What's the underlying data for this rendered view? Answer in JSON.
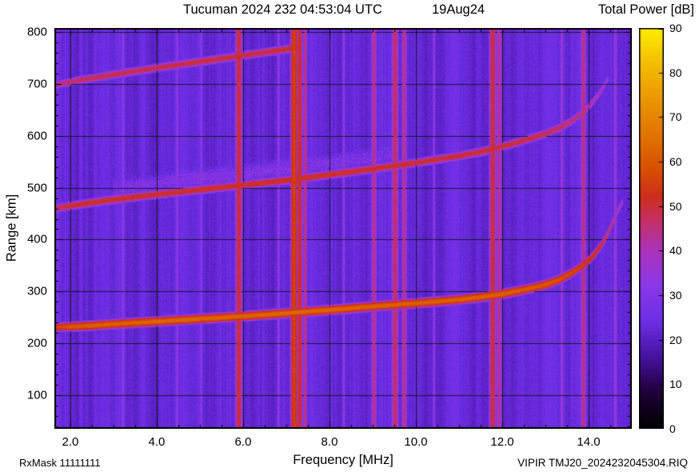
{
  "header": {
    "title": "Tucuman 2024 232 04:53:04 UTC",
    "date": "19Aug24",
    "colorbar_title": "Total Power [dB]"
  },
  "footer": {
    "rxmask": "RxMask 11111111",
    "file": "VIPIR  TMJ20_2024232045304.RIQ"
  },
  "chart_data": {
    "type": "heatmap",
    "title": "Tucuman 2024 232 04:53:04 UTC   19Aug24",
    "xlabel": "Frequency [MHz]",
    "ylabel": "Range [km]",
    "colorbar_label": "Total Power [dB]",
    "x_range": [
      1.63,
      15.0
    ],
    "y_range": [
      35,
      808
    ],
    "x_ticks": {
      "values": [
        2,
        4,
        6,
        8,
        10,
        12,
        14
      ],
      "labels": [
        "2.0",
        "4.0",
        "6.0",
        "8.0",
        "10.0",
        "12.0",
        "14.0"
      ],
      "minor_step": 0.5
    },
    "y_ticks": {
      "values": [
        100,
        200,
        300,
        400,
        500,
        600,
        700,
        800
      ],
      "labels": [
        "100",
        "200",
        "300",
        "400",
        "500",
        "600",
        "700",
        "800"
      ],
      "minor_step": 20
    },
    "colorbar": {
      "range": [
        0,
        90
      ],
      "tick_values": [
        0,
        10,
        20,
        30,
        40,
        50,
        60,
        70,
        80,
        90
      ],
      "tick_labels": [
        "0",
        "10",
        "20",
        "30",
        "40",
        "50",
        "60",
        "70",
        "80",
        "90"
      ],
      "stops": [
        [
          0,
          "#000000"
        ],
        [
          8,
          "#1e0038"
        ],
        [
          16,
          "#45129e"
        ],
        [
          24,
          "#6d2ee4"
        ],
        [
          32,
          "#8a38e8"
        ],
        [
          40,
          "#ab33bb"
        ],
        [
          47,
          "#c52f62"
        ],
        [
          52,
          "#cd2d1e"
        ],
        [
          58,
          "#d64e00"
        ],
        [
          66,
          "#e17400"
        ],
        [
          74,
          "#ea9700"
        ],
        [
          82,
          "#f3bd00"
        ],
        [
          90,
          "#ffef00"
        ]
      ]
    },
    "background_db": 23,
    "column_noise_db": 1.8,
    "pixel_noise_db": 3,
    "grid_color": "#001400",
    "rfi_lines": [
      {
        "f": 3.22,
        "db": 33,
        "w": 1.5
      },
      {
        "f": 4.47,
        "db": 33,
        "w": 1.5
      },
      {
        "f": 5.03,
        "db": 32,
        "w": 1.5
      },
      {
        "f": 5.9,
        "db": 50,
        "w": 2.5
      },
      {
        "f": 6.82,
        "db": 34,
        "w": 1.5
      },
      {
        "f": 7.18,
        "db": 56,
        "w": 2.5
      },
      {
        "f": 7.31,
        "db": 52,
        "w": 2.0
      },
      {
        "f": 7.44,
        "db": 45,
        "w": 1.5
      },
      {
        "f": 8.33,
        "db": 33,
        "w": 1.5
      },
      {
        "f": 9.03,
        "db": 44,
        "w": 2.0
      },
      {
        "f": 9.52,
        "db": 47,
        "w": 2.5
      },
      {
        "f": 9.73,
        "db": 44,
        "w": 2.0
      },
      {
        "f": 10.42,
        "db": 33,
        "w": 1.5
      },
      {
        "f": 11.78,
        "db": 50,
        "w": 2.5
      },
      {
        "f": 11.93,
        "db": 44,
        "w": 2.0
      },
      {
        "f": 13.38,
        "db": 36,
        "w": 1.5
      },
      {
        "f": 13.88,
        "db": 45,
        "w": 2.0
      },
      {
        "f": 14.62,
        "db": 36,
        "w": 1.5
      }
    ],
    "traces": [
      {
        "name": "F-region echo 1st hop",
        "sigma_km": 5,
        "jitter_db": 2,
        "points": [
          [
            1.65,
            231,
            56
          ],
          [
            2.0,
            232,
            60
          ],
          [
            2.5,
            234,
            62
          ],
          [
            3.0,
            237,
            62
          ],
          [
            4.0,
            242,
            63
          ],
          [
            5.0,
            247,
            63
          ],
          [
            6.0,
            252,
            63
          ],
          [
            7.0,
            258,
            63
          ],
          [
            8.0,
            264,
            63
          ],
          [
            9.0,
            271,
            62
          ],
          [
            10.0,
            277,
            62
          ],
          [
            11.0,
            284,
            62
          ],
          [
            11.5,
            289,
            62
          ],
          [
            12.0,
            295,
            62
          ],
          [
            12.5,
            303,
            61
          ],
          [
            13.0,
            313,
            60
          ],
          [
            13.3,
            322,
            59
          ],
          [
            13.6,
            335,
            57
          ],
          [
            13.9,
            352,
            55
          ],
          [
            14.1,
            368,
            53
          ],
          [
            14.3,
            390,
            50
          ],
          [
            14.45,
            412,
            46
          ],
          [
            14.55,
            432,
            43
          ],
          [
            14.65,
            452,
            40
          ],
          [
            14.78,
            472,
            37
          ]
        ]
      },
      {
        "name": "F-region echo 2nd hop",
        "sigma_km": 5,
        "jitter_db": 3,
        "points": [
          [
            1.65,
            460,
            48
          ],
          [
            2.0,
            465,
            51
          ],
          [
            2.5,
            471,
            52
          ],
          [
            3.0,
            477,
            52
          ],
          [
            4.0,
            487,
            52
          ],
          [
            5.0,
            496,
            52
          ],
          [
            6.0,
            505,
            52
          ],
          [
            7.0,
            514,
            53
          ],
          [
            8.0,
            525,
            52
          ],
          [
            9.0,
            536,
            52
          ],
          [
            10.0,
            548,
            51
          ],
          [
            11.0,
            561,
            51
          ],
          [
            11.5,
            569,
            51
          ],
          [
            12.0,
            579,
            51
          ],
          [
            12.5,
            591,
            50
          ],
          [
            13.0,
            604,
            49
          ],
          [
            13.3,
            614,
            48
          ],
          [
            13.6,
            628,
            46
          ],
          [
            13.9,
            647,
            44
          ],
          [
            14.1,
            665,
            41
          ],
          [
            14.3,
            688,
            38
          ],
          [
            14.45,
            710,
            35
          ]
        ]
      },
      {
        "name": "F-region echo 3rd hop",
        "sigma_km": 5,
        "jitter_db": 3,
        "points": [
          [
            1.65,
            698,
            44
          ],
          [
            2.0,
            704,
            47
          ],
          [
            2.5,
            711,
            48
          ],
          [
            3.0,
            718,
            49
          ],
          [
            4.0,
            731,
            49
          ],
          [
            5.0,
            743,
            50
          ],
          [
            6.0,
            755,
            50
          ],
          [
            6.5,
            761,
            50
          ],
          [
            7.0,
            767,
            51
          ],
          [
            7.35,
            772,
            50
          ]
        ]
      },
      {
        "name": "diffuse spread above 2nd hop",
        "sigma_km": 17,
        "jitter_db": 7,
        "points": [
          [
            3.0,
            498,
            28
          ],
          [
            4.0,
            508,
            29
          ],
          [
            5.0,
            518,
            30
          ],
          [
            6.0,
            527,
            30
          ],
          [
            7.0,
            537,
            30
          ],
          [
            8.0,
            547,
            29
          ],
          [
            9.0,
            559,
            28
          ],
          [
            9.5,
            565,
            27
          ]
        ]
      }
    ]
  }
}
